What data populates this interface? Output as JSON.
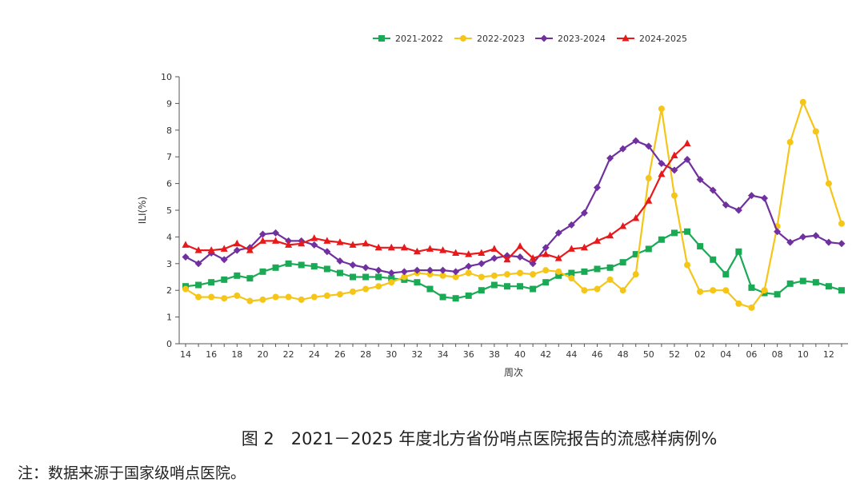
{
  "figure": {
    "caption": "图 2　2021－2025 年度北方省份哨点医院报告的流感样病例%",
    "note": "注：数据来源于国家级哨点医院。"
  },
  "chart_data": {
    "type": "line",
    "xlabel": "周次",
    "ylabel": "ILI(%)",
    "ylim": [
      0,
      10
    ],
    "yticks": [
      "0",
      "1",
      "2",
      "3",
      "4",
      "5",
      "6",
      "7",
      "8",
      "9",
      "10"
    ],
    "legend_position": "top",
    "categories": [
      "14",
      "15",
      "16",
      "17",
      "18",
      "19",
      "20",
      "21",
      "22",
      "23",
      "24",
      "25",
      "26",
      "27",
      "28",
      "29",
      "30",
      "31",
      "32",
      "33",
      "34",
      "35",
      "36",
      "37",
      "38",
      "39",
      "40",
      "41",
      "42",
      "43",
      "44",
      "45",
      "46",
      "47",
      "48",
      "49",
      "50",
      "51",
      "52",
      "01",
      "02",
      "03",
      "04",
      "05",
      "06",
      "07",
      "08",
      "09",
      "10",
      "11",
      "12",
      "13"
    ],
    "xtick_labels": [
      "14",
      "16",
      "18",
      "20",
      "22",
      "24",
      "26",
      "28",
      "30",
      "32",
      "34",
      "36",
      "38",
      "40",
      "42",
      "44",
      "46",
      "48",
      "50",
      "52",
      "02",
      "04",
      "06",
      "08",
      "10",
      "12"
    ],
    "series": [
      {
        "name": "2021-2022",
        "color": "#1aaa55",
        "marker": "square",
        "values": [
          2.15,
          2.2,
          2.3,
          2.4,
          2.55,
          2.45,
          2.7,
          2.85,
          3.0,
          2.95,
          2.9,
          2.8,
          2.65,
          2.5,
          2.5,
          2.5,
          2.45,
          2.4,
          2.3,
          2.05,
          1.75,
          1.7,
          1.8,
          2.0,
          2.2,
          2.15,
          2.15,
          2.05,
          2.3,
          2.55,
          2.65,
          2.7,
          2.8,
          2.85,
          3.05,
          3.35,
          3.55,
          3.9,
          4.15,
          4.2,
          3.65,
          3.15,
          2.6,
          3.45,
          2.1,
          1.9,
          1.85,
          2.25,
          2.35,
          2.3,
          2.15,
          2.0
        ]
      },
      {
        "name": "2022-2023",
        "color": "#f5c518",
        "marker": "circle",
        "values": [
          2.05,
          1.75,
          1.75,
          1.7,
          1.8,
          1.6,
          1.65,
          1.75,
          1.75,
          1.65,
          1.75,
          1.8,
          1.85,
          1.95,
          2.05,
          2.15,
          2.3,
          2.5,
          2.65,
          2.6,
          2.55,
          2.5,
          2.65,
          2.5,
          2.55,
          2.6,
          2.65,
          2.6,
          2.75,
          2.7,
          2.45,
          2.0,
          2.05,
          2.4,
          2.0,
          2.6,
          6.2,
          8.8,
          5.55,
          2.95,
          1.95,
          2.0,
          2.0,
          1.5,
          1.35,
          2.0,
          4.4,
          7.55,
          9.05,
          7.95,
          6.0,
          4.5
        ]
      },
      {
        "name": "2023-2024",
        "color": "#7030a0",
        "marker": "diamond",
        "values": [
          3.25,
          3.0,
          3.4,
          3.15,
          3.5,
          3.6,
          4.1,
          4.15,
          3.85,
          3.85,
          3.7,
          3.45,
          3.1,
          2.95,
          2.85,
          2.75,
          2.65,
          2.7,
          2.75,
          2.75,
          2.75,
          2.7,
          2.9,
          3.0,
          3.2,
          3.3,
          3.25,
          3.0,
          3.6,
          4.15,
          4.45,
          4.9,
          5.85,
          6.95,
          7.3,
          7.6,
          7.4,
          6.75,
          6.5,
          6.9,
          6.15,
          5.75,
          5.2,
          5.0,
          5.55,
          5.45,
          4.2,
          3.8,
          4.0,
          4.05,
          3.8,
          3.75
        ]
      },
      {
        "name": "2024-2025",
        "color": "#e8191a",
        "marker": "triangle",
        "values": [
          3.7,
          3.5,
          3.5,
          3.55,
          3.75,
          3.5,
          3.85,
          3.85,
          3.7,
          3.75,
          3.95,
          3.85,
          3.8,
          3.7,
          3.75,
          3.6,
          3.6,
          3.6,
          3.45,
          3.55,
          3.5,
          3.4,
          3.35,
          3.4,
          3.55,
          3.15,
          3.65,
          3.2,
          3.35,
          3.2,
          3.55,
          3.6,
          3.85,
          4.05,
          4.4,
          4.7,
          5.35,
          6.35,
          7.05,
          7.5,
          null,
          null,
          null,
          null,
          null,
          null,
          null,
          null,
          null,
          null,
          null,
          null
        ]
      }
    ]
  }
}
